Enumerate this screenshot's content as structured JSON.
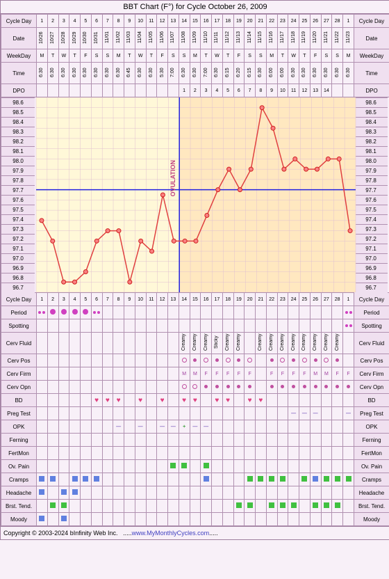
{
  "title": "BBT Chart (F°) for Cycle October 26, 2009",
  "footer_copyright": "Copyright © 2003-2024 bInfinity Web Inc.",
  "footer_url": "www.MyMonthlyCycles.com",
  "labels": {
    "cycleday": "Cycle Day",
    "date": "Date",
    "weekday": "WeekDay",
    "time": "Time",
    "dpo": "DPO",
    "period": "Period",
    "spotting": "Spotting",
    "cervfluid": "Cerv Fluid",
    "cervpos": "Cerv Pos",
    "cervfirm": "Cerv Firm",
    "cervopn": "Cerv Opn",
    "bd": "BD",
    "pregtest": "Preg Test",
    "opk": "OPK",
    "ferning": "Ferning",
    "fertmon": "FertMon",
    "ovpain": "Ov. Pain",
    "cramps": "Cramps",
    "headache": "Headache",
    "brsttend": "Brst. Tend.",
    "moody": "Moody"
  },
  "days": [
    1,
    2,
    3,
    4,
    5,
    6,
    7,
    8,
    9,
    10,
    11,
    12,
    13,
    14,
    15,
    16,
    17,
    18,
    19,
    20,
    21,
    22,
    23,
    24,
    25,
    26,
    27,
    28,
    1
  ],
  "dates": [
    "10/26",
    "10/27",
    "10/28",
    "10/29",
    "10/30",
    "10/31",
    "11/01",
    "11/02",
    "11/03",
    "11/04",
    "11/05",
    "11/06",
    "11/07",
    "11/08",
    "11/09",
    "11/10",
    "11/11",
    "11/12",
    "11/13",
    "11/14",
    "11/15",
    "11/16",
    "11/17",
    "11/18",
    "11/19",
    "11/20",
    "11/21",
    "11/22",
    "11/23"
  ],
  "weekdays": [
    "M",
    "T",
    "W",
    "T",
    "F",
    "S",
    "S",
    "M",
    "T",
    "W",
    "T",
    "F",
    "S",
    "S",
    "M",
    "T",
    "W",
    "T",
    "F",
    "S",
    "S",
    "M",
    "T",
    "W",
    "T",
    "F",
    "S",
    "S",
    "M"
  ],
  "times": [
    "6:30",
    "6:30",
    "6:30",
    "6:30",
    "6:30",
    "6:30",
    "6:30",
    "6:30",
    "6:45",
    "6:30",
    "6:30",
    "5:30",
    "7:00",
    "6:30",
    "6:30",
    "7:00",
    "6:30",
    "6:15",
    "6:20",
    "6:15",
    "6:30",
    "6:00",
    "6:00",
    "6:30",
    "6:30",
    "6:30",
    "6:30",
    "6:30",
    "6:30"
  ],
  "dpo": [
    "",
    "",
    "",
    "",
    "",
    "",
    "",
    "",
    "",
    "",
    "",
    "",
    "",
    "1",
    "2",
    "3",
    "4",
    "5",
    "6",
    "7",
    "8",
    "9",
    "10",
    "11",
    "12",
    "13",
    "14",
    "",
    ""
  ],
  "temps": [
    97.4,
    97.2,
    96.8,
    96.8,
    96.9,
    97.2,
    97.3,
    97.3,
    96.8,
    97.2,
    97.1,
    97.65,
    97.2,
    97.2,
    97.2,
    97.45,
    97.7,
    97.9,
    97.7,
    97.9,
    98.5,
    98.3,
    97.9,
    98.0,
    97.9,
    97.9,
    98.0,
    98.0,
    97.3
  ],
  "coverline": 97.7,
  "ovulation_day_index": 13,
  "ylabels": [
    98.6,
    98.5,
    98.4,
    98.3,
    98.2,
    98.1,
    98.0,
    97.9,
    97.8,
    97.7,
    97.6,
    97.5,
    97.4,
    97.3,
    97.2,
    97.1,
    97.0,
    96.9,
    96.8,
    96.7
  ],
  "chart": {
    "bg_pre": "#fff8d8",
    "bg_post": "#ffe8c0",
    "grid": "#e0c0d0",
    "line": "#e04040",
    "point_fill": "#f88080",
    "point_stroke": "#d02020",
    "coverline_color": "#2020e0",
    "ovline_color": "#2020e0"
  },
  "period": [
    "ps",
    "p",
    "p",
    "p",
    "p",
    "ps",
    "",
    "",
    "",
    "",
    "",
    "",
    "",
    "",
    "",
    "",
    "",
    "",
    "",
    "",
    "",
    "",
    "",
    "",
    "",
    "",
    "",
    "",
    "ps"
  ],
  "spotting": [
    "",
    "",
    "",
    "",
    "",
    "",
    "",
    "",
    "",
    "",
    "",
    "",
    "",
    "",
    "",
    "",
    "",
    "",
    "",
    "",
    "",
    "",
    "",
    "",
    "",
    "",
    "",
    "",
    "sp"
  ],
  "cervfluid": [
    "",
    "",
    "",
    "",
    "",
    "",
    "",
    "",
    "",
    "",
    "",
    "",
    "",
    "Creamy",
    "Creamy",
    "Creamy",
    "Sticky",
    "Creamy",
    "Creamy",
    "",
    "Creamy",
    "Creamy",
    "Creamy",
    "Creamy",
    "Creamy",
    "Creamy",
    "Creamy",
    "Creamy",
    ""
  ],
  "cervpos": [
    "",
    "",
    "",
    "",
    "",
    "",
    "",
    "",
    "",
    "",
    "",
    "",
    "",
    "o",
    "f",
    "o",
    "f",
    "o",
    "f",
    "o",
    "",
    "f",
    "o",
    "f",
    "o",
    "f",
    "o",
    "f",
    ""
  ],
  "cervfirm": [
    "",
    "",
    "",
    "",
    "",
    "",
    "",
    "",
    "",
    "",
    "",
    "",
    "",
    "M",
    "M",
    "F",
    "F",
    "F",
    "F",
    "F",
    "",
    "F",
    "F",
    "F",
    "F",
    "M",
    "M",
    "F",
    "F"
  ],
  "cervopn": [
    "",
    "",
    "",
    "",
    "",
    "",
    "",
    "",
    "",
    "",
    "",
    "",
    "",
    "o",
    "o",
    "c",
    "c",
    "c",
    "c",
    "c",
    "",
    "c",
    "c",
    "c",
    "c",
    "c",
    "c",
    "c",
    "c"
  ],
  "bd": [
    "",
    "",
    "",
    "",
    "",
    "h",
    "h",
    "h",
    "",
    "h",
    "",
    "h",
    "",
    "h",
    "h",
    "",
    "h",
    "h",
    "",
    "h",
    "h",
    "",
    "",
    "",
    "",
    "",
    "",
    "",
    ""
  ],
  "pregtest": [
    "",
    "",
    "",
    "",
    "",
    "",
    "",
    "",
    "",
    "",
    "",
    "",
    "",
    "",
    "",
    "",
    "",
    "",
    "",
    "",
    "",
    "",
    "",
    "-",
    "-",
    "-",
    "",
    "",
    "-"
  ],
  "opk": [
    "",
    "",
    "",
    "",
    "",
    "",
    "",
    "-",
    "",
    "-",
    "",
    "-",
    "-",
    "+",
    "-",
    "-",
    "",
    "",
    "",
    "",
    "",
    "",
    "",
    "",
    "",
    "",
    "",
    "",
    ""
  ],
  "ovpain": [
    "",
    "",
    "",
    "",
    "",
    "",
    "",
    "",
    "",
    "",
    "",
    "",
    "g",
    "g",
    "",
    "g",
    "",
    "",
    "",
    "",
    "",
    "",
    "",
    "",
    "",
    "",
    "",
    "",
    ""
  ],
  "cramps": [
    "b",
    "b",
    "",
    "b",
    "b",
    "b",
    "",
    "",
    "",
    "",
    "",
    "",
    "",
    "",
    "",
    "b",
    "",
    "",
    "",
    "g",
    "g",
    "g",
    "g",
    "",
    "g",
    "b",
    "g",
    "g",
    "g"
  ],
  "headache": [
    "b",
    "",
    "b",
    "b",
    "",
    "",
    "",
    "",
    "",
    "",
    "",
    "",
    "",
    "",
    "",
    "",
    "",
    "",
    "",
    "",
    "",
    "",
    "",
    "",
    "",
    "",
    "",
    "",
    ""
  ],
  "brsttend": [
    "",
    "g",
    "g",
    "",
    "",
    "",
    "",
    "",
    "",
    "",
    "",
    "",
    "",
    "",
    "",
    "",
    "",
    "",
    "g",
    "g",
    "",
    "g",
    "g",
    "g",
    "",
    "g",
    "g",
    "g",
    ""
  ],
  "moody": [
    "b",
    "",
    "b",
    "",
    "",
    "",
    "",
    "",
    "",
    "",
    "",
    "",
    "",
    "",
    "",
    "",
    "",
    "",
    "",
    "",
    "",
    "",
    "",
    "",
    "",
    "",
    "",
    "",
    ""
  ]
}
